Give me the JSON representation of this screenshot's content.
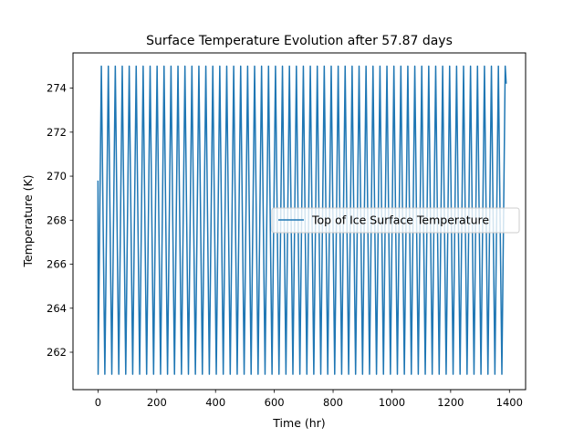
{
  "chart_data": {
    "type": "line",
    "title": "Surface Temperature Evolution after 57.87 days",
    "xlabel": "Time (hr)",
    "ylabel": "Temperature (K)",
    "xlim": [
      -85,
      1455
    ],
    "ylim": [
      260.3,
      275.6
    ],
    "xticks": [
      0,
      200,
      400,
      600,
      800,
      1000,
      1200,
      1400
    ],
    "yticks": [
      262,
      264,
      266,
      268,
      270,
      272,
      274
    ],
    "grid": false,
    "legend_position": "center-right",
    "series": [
      {
        "name": "Top of Ice Surface Temperature",
        "color": "#1f77b4",
        "pattern": {
          "start": [
            0,
            269.8
          ],
          "first_min": [
            0.5,
            261.0
          ],
          "first_max": [
            11.5,
            275.0
          ],
          "period_hr": 23.7,
          "min": 261.0,
          "max": 275.0,
          "last_max": [
            1385.6,
            275.0
          ],
          "end": [
            1389,
            274.2
          ]
        }
      }
    ]
  }
}
